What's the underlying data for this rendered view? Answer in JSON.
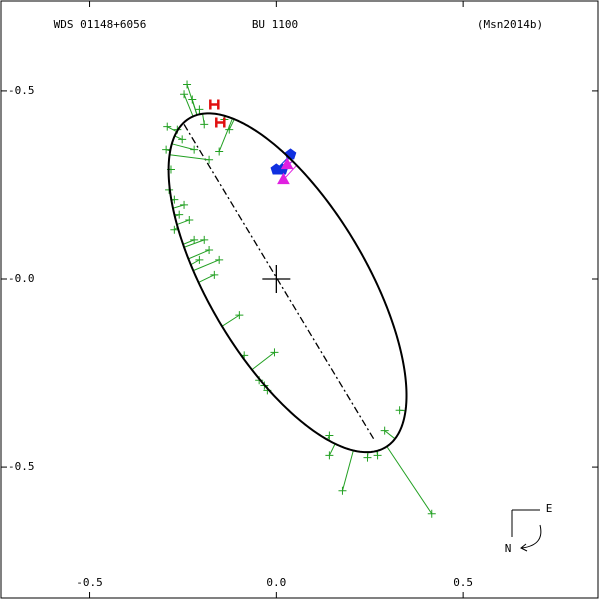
{
  "chart_data": {
    "type": "orbit",
    "title_left": "WDS 01148+6056",
    "title_center": "BU 1100",
    "title_right": "(Msn2014b)",
    "compass": {
      "east": "E",
      "north": "N"
    },
    "xlim": [
      -0.737,
      0.861
    ],
    "ylim": [
      -0.848,
      0.739
    ],
    "xticks": [
      -0.5,
      {
        "value": 0,
        "label": "0.0"
      },
      0.5
    ],
    "yticks": [
      {
        "value": 0.5,
        "label": "-0.5"
      },
      {
        "value": 0,
        "label": "-0.0"
      },
      {
        "value": -0.5,
        "label": "-0.5"
      }
    ],
    "orbit": {
      "center": [
        0.03,
        -0.01
      ],
      "a": 0.51,
      "b": 0.21,
      "angle": -59,
      "color": "#000000"
    },
    "nodes_line": {
      "x": [
        -0.247,
        0.263
      ],
      "y": [
        0.411,
        -0.429
      ]
    },
    "points": [
      {
        "marker": "plus",
        "color": "#22a022",
        "residuals": true,
        "x": [
          -0.239,
          -0.225,
          -0.206,
          -0.193,
          -0.247,
          -0.292,
          -0.265,
          -0.252,
          -0.22,
          -0.18,
          -0.153,
          -0.295,
          -0.282,
          -0.287,
          -0.273,
          -0.247,
          -0.26,
          -0.233,
          -0.273,
          -0.22,
          -0.193,
          -0.18,
          -0.206,
          -0.153,
          -0.166,
          -0.099,
          -0.086,
          -0.046,
          -0.024,
          -0.005,
          -0.032,
          0.142,
          0.142,
          0.177,
          0.244,
          0.271,
          0.29,
          0.33,
          0.416,
          -0.139,
          -0.126
        ],
        "y": [
          0.517,
          0.477,
          0.451,
          0.411,
          0.491,
          0.405,
          0.397,
          0.371,
          0.344,
          0.317,
          0.339,
          0.344,
          0.291,
          0.237,
          0.211,
          0.197,
          0.171,
          0.157,
          0.131,
          0.104,
          0.104,
          0.077,
          0.051,
          0.051,
          0.011,
          -0.096,
          -0.203,
          -0.269,
          -0.296,
          -0.195,
          -0.283,
          -0.416,
          -0.469,
          -0.563,
          -0.475,
          -0.469,
          -0.403,
          -0.349,
          -0.624,
          0.424,
          0.397
        ]
      },
      {
        "marker": "pentagon",
        "color": "#1030e0",
        "residuals": true,
        "x": [
          0,
          0.016,
          0.038
        ],
        "y": [
          0.291,
          0.291,
          0.331
        ]
      },
      {
        "marker": "triangle",
        "color": "#e020e0",
        "residuals": true,
        "x": [
          0.019,
          0.029
        ],
        "y": [
          0.264,
          0.304
        ]
      },
      {
        "marker": "H",
        "color": "#e01010",
        "residuals": false,
        "x": [
          -0.166,
          -0.15
        ],
        "y": [
          0.464,
          0.416
        ]
      }
    ]
  }
}
